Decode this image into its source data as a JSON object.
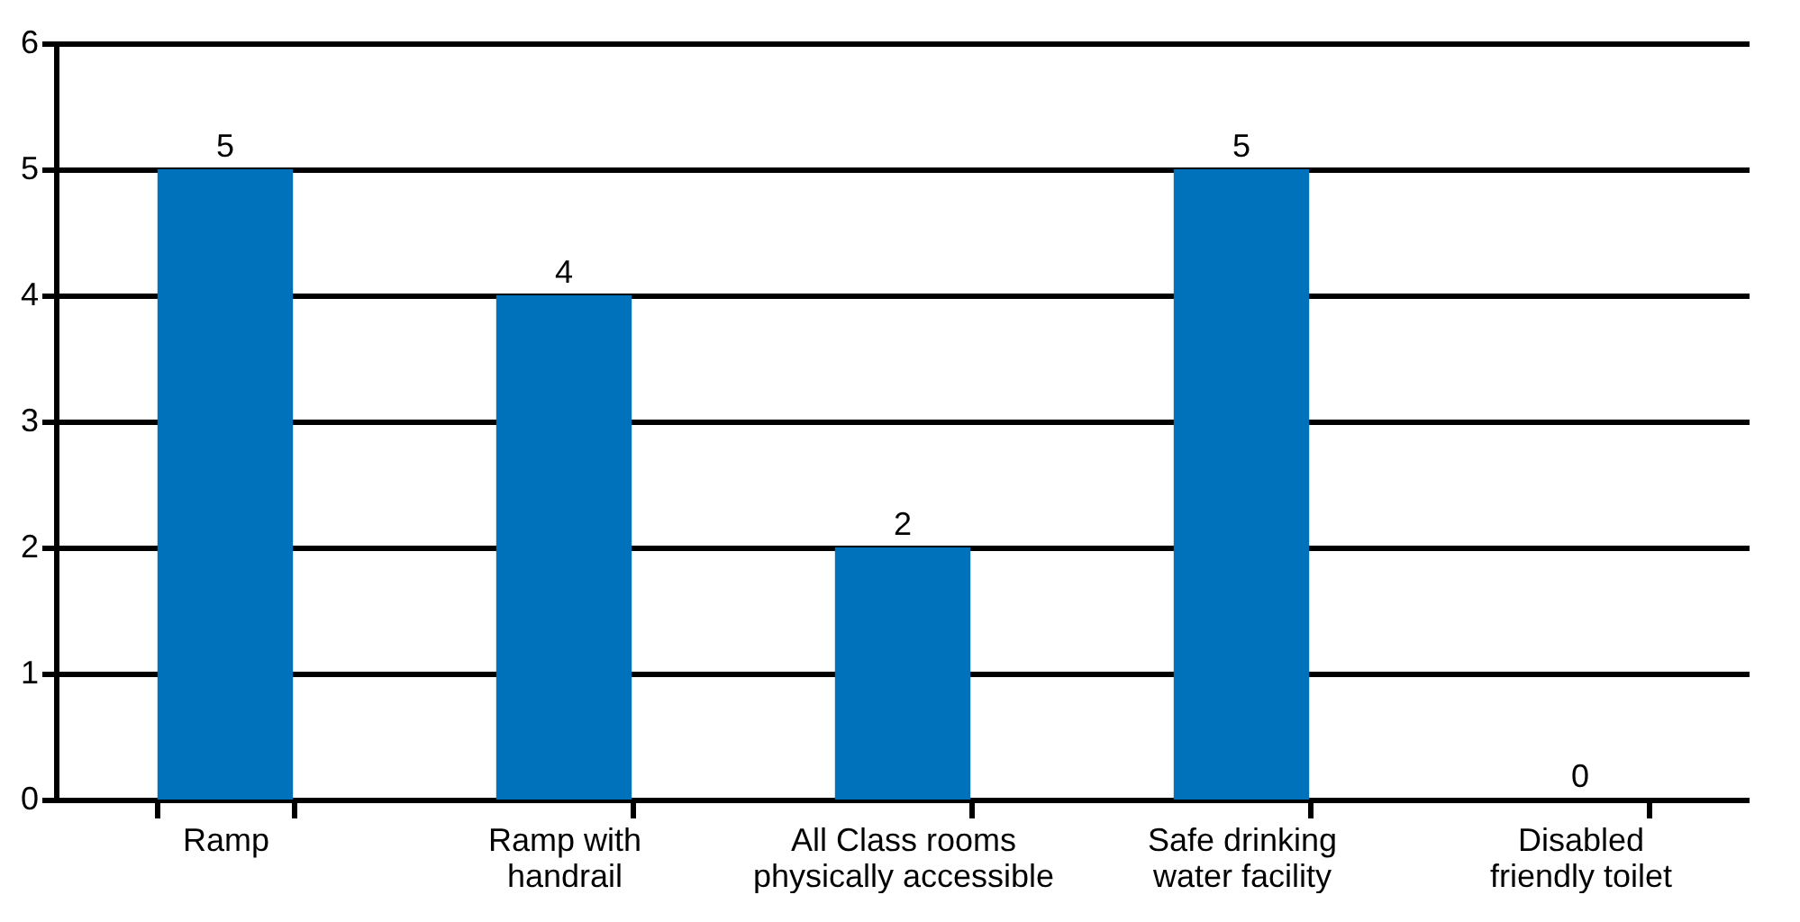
{
  "chart_data": {
    "type": "bar",
    "categories": [
      "Ramp",
      "Ramp with\nhandrail",
      "All Class rooms\nphysically accessible",
      "Safe drinking\nwater facility",
      "Disabled\nfriendly toilet"
    ],
    "values": [
      5,
      4,
      2,
      5,
      0
    ],
    "color": "#0072bc",
    "ylim": [
      0,
      6
    ],
    "yticks": [
      0,
      1,
      2,
      3,
      4,
      5,
      6
    ],
    "grid": "y",
    "data_labels": true
  }
}
